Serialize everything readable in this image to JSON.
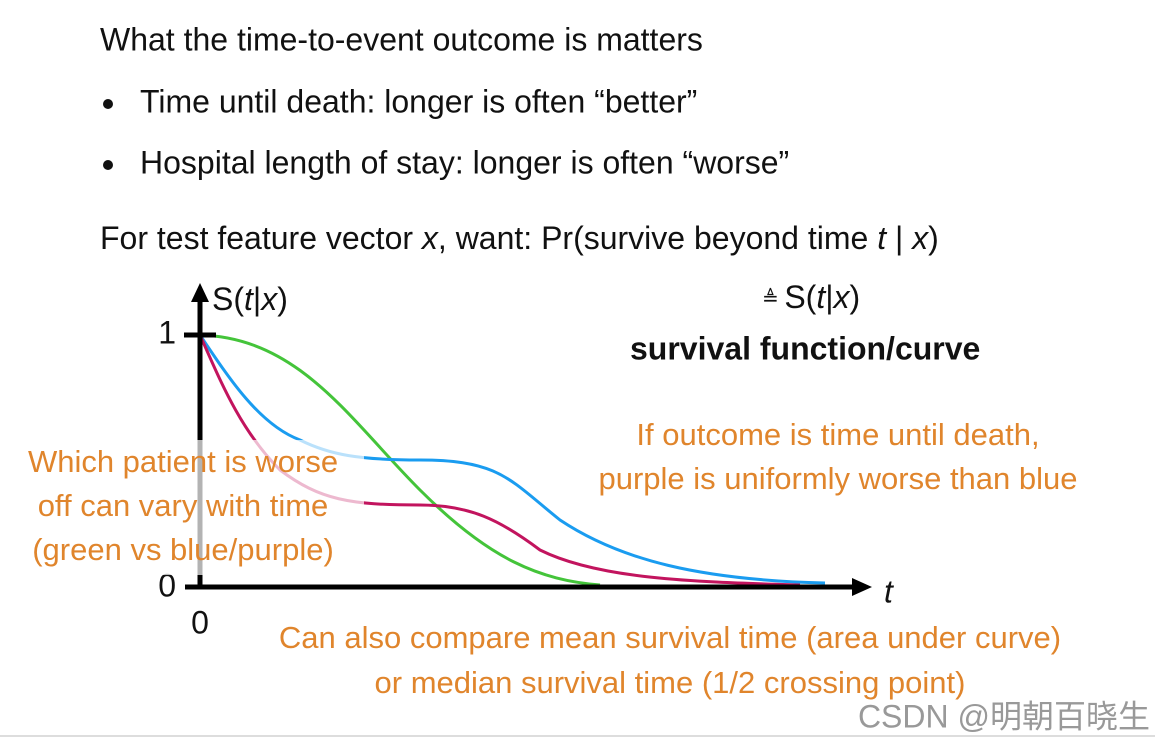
{
  "heading": "What the time-to-event outcome is matters",
  "bullets": [
    "Time until death: longer is often “better”",
    "Hospital length of stay: longer is often “worse”"
  ],
  "question": [
    "For test feature vector ",
    "x",
    ", want: ",
    "Pr(survive beyond time ",
    "t",
    " | ",
    "x",
    ")"
  ],
  "plot": {
    "y_axis_label": [
      "S(",
      "t",
      "|",
      "x",
      ")"
    ],
    "y_tick_top": "1",
    "y_tick_bottom": "0",
    "x_tick": "0",
    "x_axis_label": "t"
  },
  "definition": [
    "≜ ",
    "S(",
    "t",
    "|",
    "x",
    ")"
  ],
  "definition_name": "survival function/curve",
  "annotations": {
    "left": [
      "Which patient is worse",
      "off can vary with time",
      "(green vs blue/purple)"
    ],
    "right": [
      "If outcome is time until death,",
      "purple is uniformly worse than blue"
    ],
    "bottom": [
      "Can also compare mean survival time (area under curve)",
      "or median survival time (1/2 crossing point)"
    ]
  },
  "watermark": "CSDN @明朝百晓生"
}
